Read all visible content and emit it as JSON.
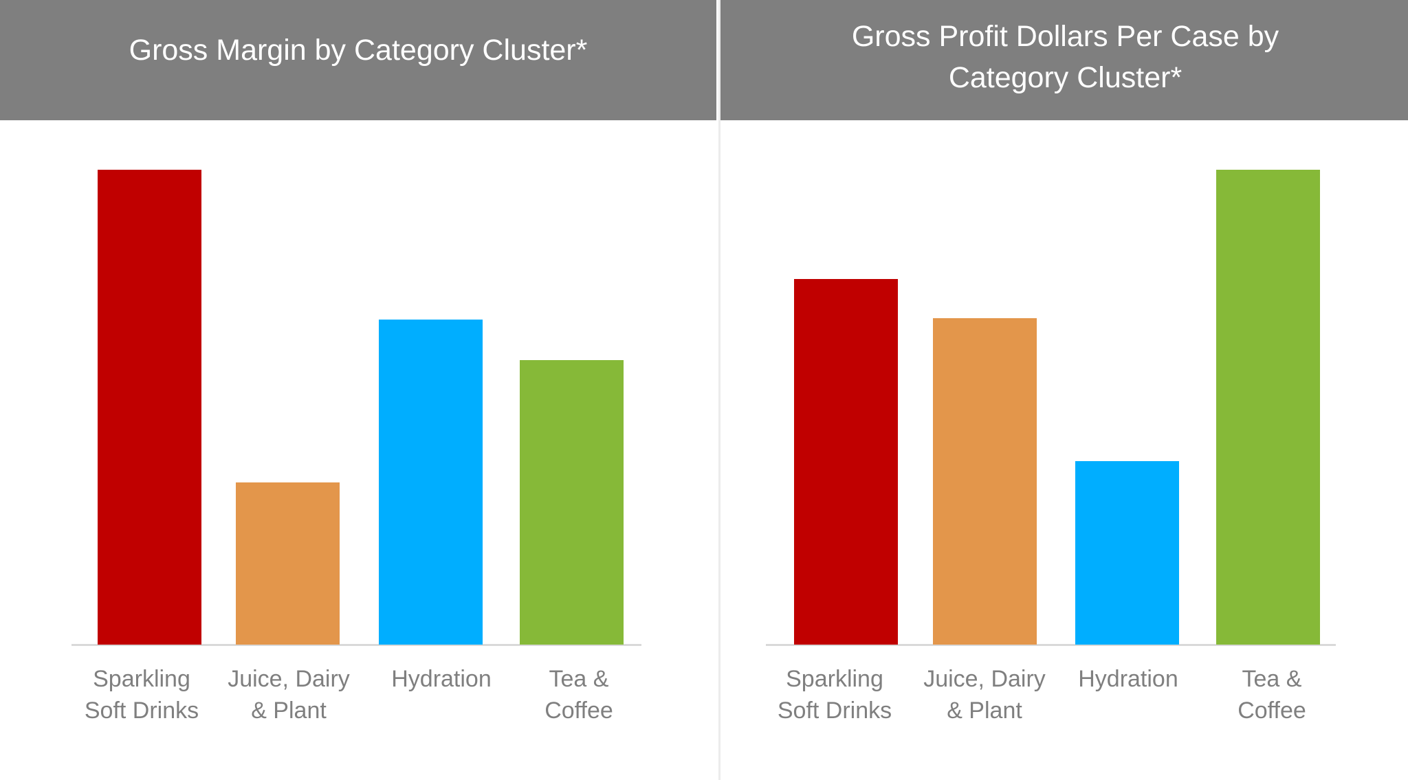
{
  "chart_data": [
    {
      "type": "bar",
      "title": "Gross Margin by Category Cluster*",
      "categories": [
        "Sparkling\nSoft Drinks",
        "Juice, Dairy\n& Plant",
        "Hydration",
        "Tea &\nCoffee"
      ],
      "values": [
        100,
        34.2,
        68.4,
        59.9
      ],
      "value_note": "relative (no axis shown); tallest = 100",
      "colors": [
        "#c00000",
        "#e3964b",
        "#00aeff",
        "#86b938"
      ],
      "ylim": [
        0,
        100
      ],
      "grid": false,
      "legend": "none"
    },
    {
      "type": "bar",
      "title": "Gross Profit Dollars Per Case by Category Cluster*",
      "categories": [
        "Sparkling\nSoft Drinks",
        "Juice, Dairy\n& Plant",
        "Hydration",
        "Tea &\nCoffee"
      ],
      "values": [
        77.0,
        68.7,
        38.7,
        100
      ],
      "value_note": "relative (no axis shown); tallest = 100",
      "colors": [
        "#c00000",
        "#e3964b",
        "#00aeff",
        "#86b938"
      ],
      "ylim": [
        0,
        100
      ],
      "grid": false,
      "legend": "none"
    }
  ]
}
